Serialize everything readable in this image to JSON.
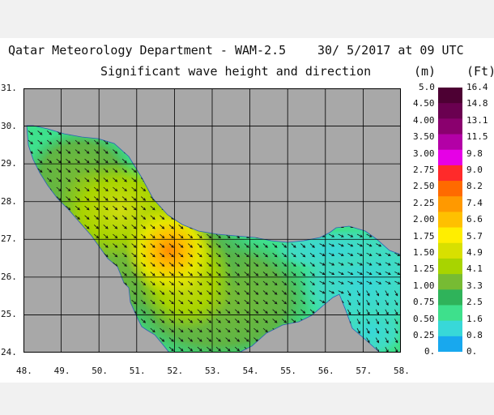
{
  "header": {
    "line1_left": "Qatar Meteorology Department - WAM-2.5",
    "line1_right": "30/ 5/2017 at 09 UTC",
    "line2": "Significant wave height and direction",
    "unit_m": "(m)",
    "unit_ft": "(Ft)"
  },
  "map": {
    "lon_labels": [
      "48.",
      "49.",
      "50.",
      "51.",
      "52.",
      "53.",
      "54.",
      "55.",
      "56.",
      "57.",
      "58."
    ],
    "lat_labels": [
      "31.",
      "30.",
      "29.",
      "28.",
      "27.",
      "26.",
      "25.",
      "24."
    ],
    "lon_range": [
      48,
      58
    ],
    "lat_range": [
      24,
      31
    ],
    "land_color": "#a8a8a8",
    "grid": true,
    "arrow_direction": "toward south-east"
  },
  "legend": {
    "m_labels": [
      "5.0",
      "4.50",
      "4.00",
      "3.50",
      "3.00",
      "2.75",
      "2.50",
      "2.25",
      "2.00",
      "1.75",
      "1.50",
      "1.25",
      "1.00",
      "0.75",
      "0.50",
      "0.25",
      "0."
    ],
    "ft_labels": [
      "16.4",
      "14.8",
      "13.1",
      "11.5",
      "9.8",
      "9.0",
      "8.2",
      "7.4",
      "6.6",
      "5.7",
      "4.9",
      "4.1",
      "3.3",
      "2.5",
      "1.6",
      "0.8",
      "0."
    ],
    "colors": [
      "#4d0033",
      "#6a0050",
      "#8a006e",
      "#b300a6",
      "#e600e6",
      "#ff2a2a",
      "#ff6a00",
      "#ff9900",
      "#ffc000",
      "#ffee00",
      "#d8e000",
      "#a8d400",
      "#77bb33",
      "#2fb35a",
      "#3ee08c",
      "#38d8d8",
      "#18a8ee"
    ]
  }
}
